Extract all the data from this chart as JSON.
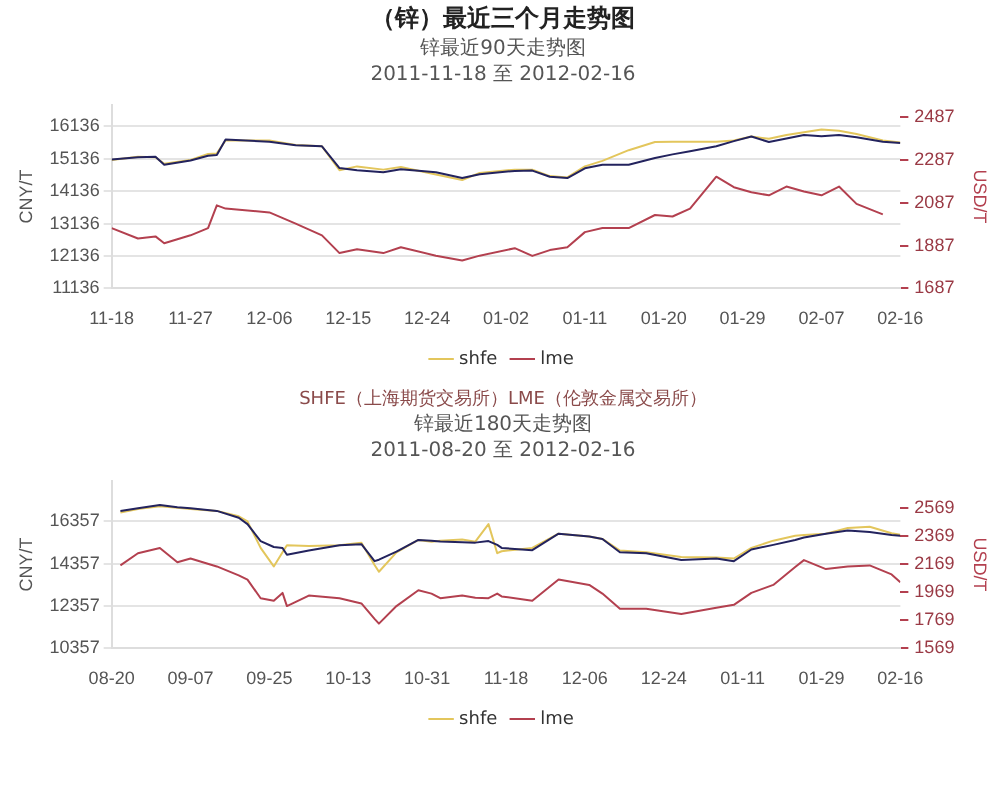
{
  "chart_data": [
    {
      "type": "line",
      "title": "（锌）最近三个月走势图",
      "subtitle": "锌最近90天走势图",
      "annotations": [
        "2011-11-18 至 2012-02-16",
        "SHFE（上海期货交易所）LME（伦敦金属交易所）"
      ],
      "ylabel": "CNY/T",
      "y2label": "USD/T",
      "grid": "y",
      "legend": "bottom",
      "x": [
        "2011-11-18",
        "2011-11-21",
        "2011-11-23",
        "2011-11-24",
        "2011-11-27",
        "2011-11-29",
        "2011-11-30",
        "2011-12-01",
        "2011-12-06",
        "2011-12-09",
        "2011-12-12",
        "2011-12-14",
        "2011-12-16",
        "2011-12-19",
        "2011-12-21",
        "2011-12-25",
        "2011-12-28",
        "2011-12-30",
        "2012-01-03",
        "2012-01-05",
        "2012-01-07",
        "2012-01-09",
        "2012-01-11",
        "2012-01-13",
        "2012-01-16",
        "2012-01-19",
        "2012-01-21",
        "2012-01-23",
        "2012-01-26",
        "2012-01-28",
        "2012-01-30",
        "2012-02-01",
        "2012-02-03",
        "2012-02-05",
        "2012-02-07",
        "2012-02-09",
        "2012-02-11",
        "2012-02-14",
        "2012-02-16"
      ],
      "xlim": [
        "2011-11-18",
        "2012-02-16"
      ],
      "xticks": [
        {
          "value": "2011-11-18",
          "label": "11-18"
        },
        {
          "value": "2011-11-27",
          "label": "11-27"
        },
        {
          "value": "2011-12-06",
          "label": "12-06"
        },
        {
          "value": "2011-12-15",
          "label": "12-15"
        },
        {
          "value": "2011-12-24",
          "label": "12-24"
        },
        {
          "value": "2012-01-02",
          "label": "01-02"
        },
        {
          "value": "2012-01-11",
          "label": "01-11"
        },
        {
          "value": "2012-01-20",
          "label": "01-20"
        },
        {
          "value": "2012-01-29",
          "label": "01-29"
        },
        {
          "value": "2012-02-07",
          "label": "02-07"
        },
        {
          "value": "2012-02-16",
          "label": "02-16"
        }
      ],
      "ylim": [
        11136,
        16800
      ],
      "yticks": [
        11136,
        12136,
        13136,
        14136,
        15136,
        16136
      ],
      "y2lim": [
        1687,
        2545
      ],
      "y2ticks": [
        1687,
        1887,
        2087,
        2287,
        2487
      ],
      "series": [
        {
          "color": "#23235e",
          "values": [
            15110,
            15180,
            15200,
            14950,
            15080,
            15230,
            15250,
            15730,
            15660,
            15550,
            15520,
            14850,
            14780,
            14720,
            14810,
            14720,
            14540,
            14660,
            14760,
            14770,
            14580,
            14540,
            14840,
            14950,
            14950,
            15160,
            15270,
            15370,
            15520,
            15680,
            15820,
            15650,
            15760,
            15870,
            15830,
            15870,
            15800,
            15660,
            15620
          ]
        },
        {
          "name": "shfe",
          "color": "#e3c65c",
          "values": [
            15100,
            15200,
            15180,
            14980,
            15100,
            15280,
            15300,
            15700,
            15700,
            15560,
            15520,
            14780,
            14900,
            14800,
            14880,
            14650,
            14480,
            14700,
            14800,
            14800,
            14600,
            14560,
            14900,
            15070,
            15400,
            15650,
            15660,
            15660,
            15660,
            15700,
            15820,
            15750,
            15870,
            15950,
            16040,
            16000,
            15900,
            15700,
            15640
          ]
        },
        {
          "name": "lme",
          "color": "#b3404f",
          "axis": "y2",
          "values": [
            1969,
            1920,
            1930,
            1898,
            1935,
            1969,
            2075,
            2060,
            2042,
            1990,
            1935,
            1852,
            1870,
            1852,
            1879,
            1840,
            1817,
            1840,
            1875,
            1839,
            1866,
            1879,
            1950,
            1969,
            1969,
            2030,
            2023,
            2060,
            2209,
            2160,
            2136,
            2122,
            2163,
            2140,
            2122,
            2163,
            2082,
            2033,
            null
          ]
        }
      ]
    },
    {
      "type": "line",
      "title": "锌最近180天走势图",
      "subtitle": "2011-08-20 至 2012-02-16",
      "ylabel": "CNY/T",
      "y2label": "USD/T",
      "grid": "y",
      "legend": "bottom",
      "x": [
        "2011-08-22",
        "2011-08-26",
        "2011-08-31",
        "2011-09-04",
        "2011-09-07",
        "2011-09-13",
        "2011-09-18",
        "2011-09-20",
        "2011-09-23",
        "2011-09-26",
        "2011-09-28",
        "2011-09-29",
        "2011-10-04",
        "2011-10-11",
        "2011-10-16",
        "2011-10-19",
        "2011-10-20",
        "2011-10-24",
        "2011-10-29",
        "2011-11-01",
        "2011-11-03",
        "2011-11-08",
        "2011-11-11",
        "2011-11-14",
        "2011-11-16",
        "2011-11-17",
        "2011-11-24",
        "2011-11-30",
        "2011-12-07",
        "2011-12-10",
        "2011-12-14",
        "2011-12-20",
        "2011-12-28",
        "2012-01-05",
        "2012-01-09",
        "2012-01-13",
        "2012-01-18",
        "2012-01-23",
        "2012-01-25",
        "2012-01-30",
        "2012-02-04",
        "2012-02-09",
        "2012-02-14",
        "2012-02-16"
      ],
      "xlim": [
        "2011-08-20",
        "2012-02-16"
      ],
      "xticks": [
        {
          "value": "2011-08-20",
          "label": "08-20"
        },
        {
          "value": "2011-09-07",
          "label": "09-07"
        },
        {
          "value": "2011-09-25",
          "label": "09-25"
        },
        {
          "value": "2011-10-13",
          "label": "10-13"
        },
        {
          "value": "2011-10-31",
          "label": "10-31"
        },
        {
          "value": "2011-11-18",
          "label": "11-18"
        },
        {
          "value": "2011-12-06",
          "label": "12-06"
        },
        {
          "value": "2011-12-24",
          "label": "12-24"
        },
        {
          "value": "2012-01-11",
          "label": "01-11"
        },
        {
          "value": "2012-01-29",
          "label": "01-29"
        },
        {
          "value": "2012-02-16",
          "label": "02-16"
        }
      ],
      "ylim": [
        10357,
        18280
      ],
      "yticks": [
        10357,
        12357,
        14357,
        16357
      ],
      "y2lim": [
        1569,
        2765
      ],
      "y2ticks": [
        1569,
        1769,
        1969,
        2169,
        2369,
        2569
      ],
      "series": [
        {
          "color": "#23235e",
          "values": [
            16857,
            16982,
            17132,
            17030,
            16982,
            16857,
            16532,
            16232,
            15432,
            15150,
            15107,
            14782,
            14982,
            15232,
            15282,
            14482,
            14550,
            14932,
            15482,
            15450,
            15407,
            15380,
            15357,
            15432,
            15250,
            15107,
            15000,
            15782,
            15650,
            15532,
            14900,
            14857,
            14532,
            14607,
            14482,
            15032,
            15250,
            15482,
            15600,
            15782,
            15932,
            15857,
            15720,
            15682
          ]
        },
        {
          "name": "shfe",
          "color": "#e3c65c",
          "values": [
            16782,
            16950,
            17082,
            17000,
            16950,
            16857,
            16600,
            16357,
            15107,
            14232,
            14900,
            15232,
            15200,
            15232,
            15357,
            14300,
            13982,
            14900,
            15482,
            15400,
            15450,
            15500,
            15400,
            16232,
            14857,
            14950,
            15107,
            15782,
            15650,
            15532,
            14982,
            14900,
            14682,
            14650,
            14607,
            15107,
            15450,
            15682,
            15720,
            15782,
            16050,
            16107,
            15800,
            15732
          ]
        },
        {
          "name": "lme",
          "color": "#b3404f",
          "axis": "y2",
          "values": [
            2161,
            2248,
            2286,
            2184,
            2210,
            2154,
            2090,
            2060,
            1927,
            1909,
            1965,
            1871,
            1946,
            1927,
            1890,
            1780,
            1746,
            1871,
            1984,
            1960,
            1927,
            1946,
            1930,
            1927,
            1960,
            1940,
            1909,
            2060,
            2022,
            1960,
            1852,
            1852,
            1814,
            1859,
            1880,
            1965,
            2022,
            2150,
            2199,
            2135,
            2154,
            2161,
            2097,
            2041
          ]
        }
      ]
    }
  ]
}
